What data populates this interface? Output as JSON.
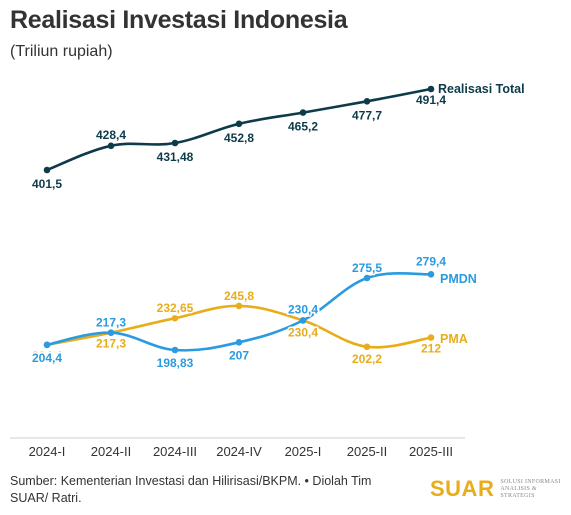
{
  "header": {
    "title": "Realisasi Investasi Indonesia",
    "subtitle": "(Triliun rupiah)"
  },
  "footer": {
    "source": "Sumber: Kementerian Investasi dan Hilirisasi/BKPM. • Diolah Tim SUAR/ Ratri."
  },
  "logo": {
    "word": "SUAR",
    "tagline": "SOLUSI INFORMASI ANALISIS & STRATEGIS"
  },
  "colors": {
    "total": "#0d3b4a",
    "pmdn": "#2a9be0",
    "pma": "#e8ad1a",
    "axis": "#cfcfcf",
    "tick_text": "#333333"
  },
  "chart_data": {
    "type": "line",
    "categories": [
      "2024-I",
      "2024-II",
      "2024-III",
      "2024-IV",
      "2025-I",
      "2025-II",
      "2025-III"
    ],
    "series": [
      {
        "name": "Realisasi Total",
        "key": "total",
        "values": [
          401.5,
          428.4,
          431.48,
          452.8,
          465.2,
          477.7,
          491.4
        ],
        "labels": [
          "401,5",
          "428,4",
          "431,48",
          "452,8",
          "465,2",
          "477,7",
          "491,4"
        ]
      },
      {
        "name": "PMDN",
        "key": "pmdn",
        "values": [
          204.4,
          217.3,
          198.83,
          207,
          230.4,
          275.5,
          279.4
        ],
        "labels": [
          "204,4",
          "217,3",
          "198,83",
          "207",
          "230,4",
          "275,5",
          "279,4"
        ]
      },
      {
        "name": "PMA",
        "key": "pma",
        "values": [
          204.4,
          217.3,
          232.65,
          245.8,
          230.4,
          202.2,
          212
        ],
        "labels": [
          "204,4",
          "217,3",
          "232,65",
          "245,8",
          "230,4",
          "202,2",
          "212"
        ]
      }
    ],
    "legend": "inline-right",
    "grid": false
  }
}
